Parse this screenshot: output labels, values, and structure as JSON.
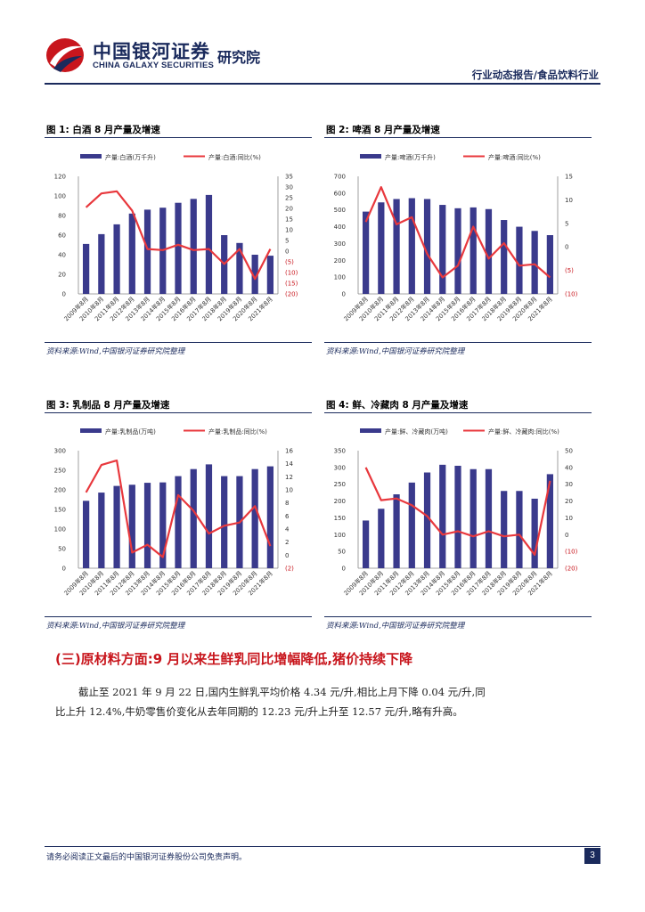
{
  "header": {
    "logo_cn": "中国银河证券",
    "logo_en": "CHINA GALAXY SECURITIES",
    "institute": "研究院",
    "report_type": "行业动态报告/食品饮料行业"
  },
  "figures": [
    {
      "title": "图 1:  白酒 8 月产量及增速",
      "source": "资料来源:Wind,中国银河证券研究院整理",
      "chart_data": {
        "type": "bar",
        "categories": [
          "2009年8月",
          "2010年8月",
          "2011年8月",
          "2012年8月",
          "2013年8月",
          "2014年8月",
          "2015年8月",
          "2016年8月",
          "2017年8月",
          "2018年8月",
          "2019年8月",
          "2020年8月",
          "2021年8月"
        ],
        "series": [
          {
            "name": "产量:白酒(万千升)",
            "type": "bar",
            "axis": "left",
            "values": [
              51,
              61,
              71,
              82,
              86,
              88,
              93,
              97,
              101,
              60,
              52,
              40,
              39
            ]
          },
          {
            "name": "产量:白酒:同比(%)",
            "type": "line",
            "axis": "right",
            "values": [
              20.5,
              27,
              28,
              19,
              1,
              0.5,
              3,
              0.5,
              1,
              -6,
              1,
              -13,
              1
            ]
          }
        ],
        "left_ticks": [
          "120",
          "100",
          "80",
          "60",
          "40",
          "20",
          "0"
        ],
        "left_range": [
          0,
          120
        ],
        "right_ticks": [
          "35",
          "30",
          "25",
          "20",
          "15",
          "10",
          "5",
          "0",
          "(5)",
          "(10)",
          "(15)",
          "(20)"
        ],
        "right_range": [
          -20,
          35
        ]
      }
    },
    {
      "title": "图 2:  啤酒 8 月产量及增速",
      "source": "资料来源:Wind,中国银河证券研究院整理",
      "chart_data": {
        "type": "bar",
        "categories": [
          "2009年8月",
          "2010年8月",
          "2011年8月",
          "2012年8月",
          "2013年8月",
          "2014年8月",
          "2015年8月",
          "2016年8月",
          "2017年8月",
          "2018年8月",
          "2019年8月",
          "2020年8月",
          "2021年8月"
        ],
        "series": [
          {
            "name": "产量:啤酒(万千升)",
            "type": "bar",
            "axis": "left",
            "values": [
              490,
              545,
              565,
              570,
              565,
              530,
              510,
              515,
              505,
              440,
              400,
              375,
              350
            ]
          },
          {
            "name": "产量:啤酒:同比(%)",
            "type": "line",
            "axis": "right",
            "values": [
              5.3,
              12.7,
              4.8,
              6.3,
              -1.5,
              -6.5,
              -4,
              4.3,
              -2.5,
              0.8,
              -4,
              -3.7,
              -6.5
            ]
          }
        ],
        "left_ticks": [
          "700",
          "600",
          "500",
          "400",
          "300",
          "200",
          "100",
          "0"
        ],
        "left_range": [
          0,
          700
        ],
        "right_ticks": [
          "15",
          "10",
          "5",
          "0",
          "(5)",
          "(10)"
        ],
        "right_range": [
          -10,
          15
        ]
      }
    },
    {
      "title": "图 3:  乳制品 8 月产量及增速",
      "source": "资料来源:Wind,中国银河证券研究院整理",
      "chart_data": {
        "type": "bar",
        "categories": [
          "2009年8月",
          "2010年8月",
          "2011年8月",
          "2012年8月",
          "2013年8月",
          "2014年8月",
          "2015年8月",
          "2016年8月",
          "2017年8月",
          "2018年8月",
          "2019年8月",
          "2020年8月",
          "2021年8月"
        ],
        "series": [
          {
            "name": "产量:乳制品(万吨)",
            "type": "bar",
            "axis": "left",
            "values": [
              172,
              193,
              210,
              213,
              218,
              219,
              235,
              253,
              265,
              235,
              235,
              253,
              260
            ]
          },
          {
            "name": "产量:乳制品:同比(%)",
            "type": "line",
            "axis": "right",
            "values": [
              9.6,
              13.8,
              14.5,
              0.4,
              1.6,
              -0.3,
              9.2,
              6.8,
              3.3,
              4.5,
              5,
              7.5,
              1.4
            ]
          }
        ],
        "left_ticks": [
          "300",
          "250",
          "200",
          "150",
          "100",
          "50",
          "0"
        ],
        "left_range": [
          0,
          300
        ],
        "right_ticks": [
          "16",
          "14",
          "12",
          "10",
          "8",
          "6",
          "4",
          "2",
          "0",
          "(2)"
        ],
        "right_range": [
          -2,
          16
        ]
      }
    },
    {
      "title": "图 4:  鲜、冷藏肉 8 月产量及增速",
      "source": "资料来源:Wind,中国银河证券研究院整理",
      "chart_data": {
        "type": "bar",
        "categories": [
          "2009年8月",
          "2010年8月",
          "2011年8月",
          "2012年8月",
          "2013年8月",
          "2014年8月",
          "2015年8月",
          "2016年8月",
          "2017年8月",
          "2018年8月",
          "2019年8月",
          "2020年8月",
          "2021年8月"
        ],
        "series": [
          {
            "name": "产量:鲜、冷藏肉(万吨)",
            "type": "bar",
            "axis": "left",
            "values": [
              142,
              177,
              220,
              255,
              285,
              308,
              305,
              295,
              295,
              230,
              230,
              207,
              280
            ]
          },
          {
            "name": "产量:鲜、冷藏肉:同比(%)",
            "type": "line",
            "axis": "right",
            "values": [
              40,
              20.5,
              21.5,
              17.5,
              11,
              0,
              2,
              -1,
              2,
              -1,
              0,
              -12,
              32
            ]
          }
        ],
        "left_ticks": [
          "350",
          "300",
          "250",
          "200",
          "150",
          "100",
          "50",
          "0"
        ],
        "left_range": [
          0,
          350
        ],
        "right_ticks": [
          "50",
          "40",
          "30",
          "20",
          "10",
          "0",
          "(10)",
          "(20)"
        ],
        "right_range": [
          -20,
          50
        ]
      }
    }
  ],
  "section": {
    "title": "(三)原材料方面:9 月以来生鲜乳同比增幅降低,猪价持续下降",
    "paragraph_line1": "截止至 2021 年 9 月 22 日,国内生鲜乳平均价格 4.34 元/升,相比上月下降 0.04 元/升,同",
    "paragraph_line2": "比上升 12.4%,牛奶零售价变化从去年同期的 12.23 元/升上升至 12.57 元/升,略有升高。"
  },
  "footer": {
    "disclaimer": "请务必阅读正文最后的中国银河证券股份公司免责声明。",
    "page_number": "3"
  },
  "colors": {
    "bar": "#3a3a8c",
    "line": "#e8383d",
    "navy": "#1a2a5c",
    "accent_red": "#c8161d"
  }
}
